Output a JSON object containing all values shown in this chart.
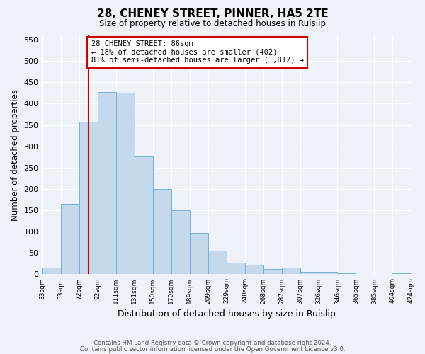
{
  "title": "28, CHENEY STREET, PINNER, HA5 2TE",
  "subtitle": "Size of property relative to detached houses in Ruislip",
  "xlabel": "Distribution of detached houses by size in Ruislip",
  "ylabel": "Number of detached properties",
  "tick_labels": [
    "33sqm",
    "53sqm",
    "72sqm",
    "92sqm",
    "111sqm",
    "131sqm",
    "150sqm",
    "170sqm",
    "189sqm",
    "209sqm",
    "229sqm",
    "248sqm",
    "268sqm",
    "287sqm",
    "307sqm",
    "326sqm",
    "346sqm",
    "365sqm",
    "385sqm",
    "404sqm",
    "424sqm"
  ],
  "values": [
    15,
    165,
    357,
    428,
    425,
    277,
    200,
    150,
    97,
    55,
    28,
    22,
    12,
    15,
    5,
    5,
    3,
    1,
    0,
    3
  ],
  "bar_color": "#c5d9ed",
  "bar_edge_color": "#7aafd4",
  "vline_color": "#cc0000",
  "vline_position": 2.5,
  "annotation_text": "28 CHENEY STREET: 86sqm\n← 18% of detached houses are smaller (402)\n81% of semi-detached houses are larger (1,812) →",
  "annotation_box_color": "white",
  "annotation_box_edge_color": "#cc0000",
  "ylim": [
    0,
    560
  ],
  "yticks": [
    0,
    50,
    100,
    150,
    200,
    250,
    300,
    350,
    400,
    450,
    500,
    550
  ],
  "footer_line1": "Contains HM Land Registry data © Crown copyright and database right 2024.",
  "footer_line2": "Contains public sector information licensed under the Open Government Licence v3.0.",
  "background_color": "#eef2f9",
  "grid_color": "#ffffff"
}
